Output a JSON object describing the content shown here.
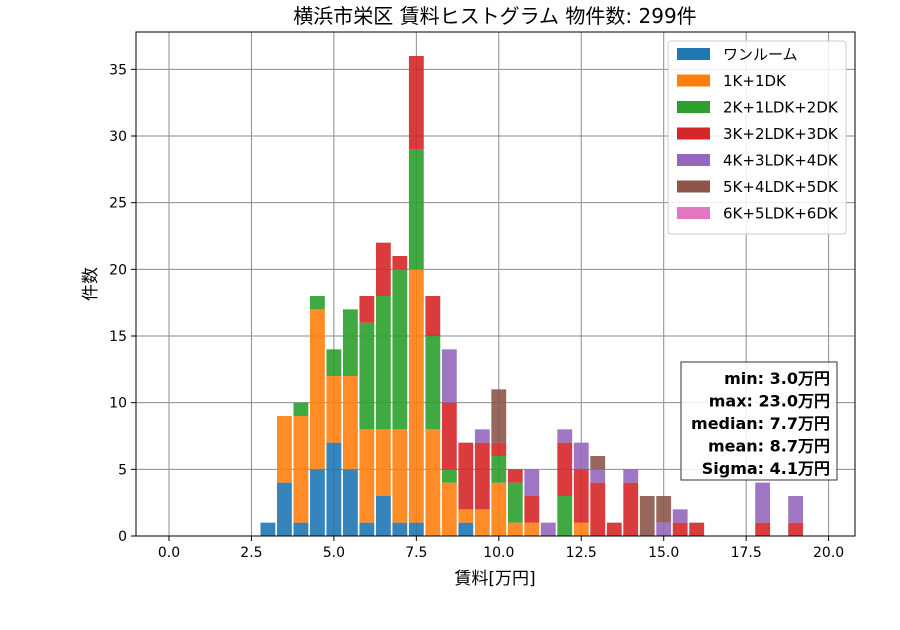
{
  "chart_data": {
    "type": "bar",
    "stacked": true,
    "title": "横浜市栄区 賃料ヒストグラム 物件数: 299件",
    "xlabel": "賃料[万円]",
    "ylabel": "件数",
    "xlim": [
      -1.0,
      20.8
    ],
    "ylim": [
      0,
      37.8
    ],
    "xticks": [
      0.0,
      2.5,
      5.0,
      7.5,
      10.0,
      12.5,
      15.0,
      17.5,
      20.0
    ],
    "xtick_labels": [
      "0.0",
      "2.5",
      "5.0",
      "7.5",
      "10.0",
      "12.5",
      "15.0",
      "17.5",
      "20.0"
    ],
    "yticks": [
      0,
      5,
      10,
      15,
      20,
      25,
      30,
      35
    ],
    "ytick_labels": [
      "0",
      "5",
      "10",
      "15",
      "20",
      "25",
      "30",
      "35"
    ],
    "grid": true,
    "legend_position": "top-right",
    "bin_width": 0.5,
    "x": [
      3.0,
      3.5,
      4.0,
      4.5,
      5.0,
      5.5,
      6.0,
      6.5,
      7.0,
      7.5,
      8.0,
      8.5,
      9.0,
      9.5,
      10.0,
      10.5,
      11.0,
      11.5,
      12.0,
      12.5,
      13.0,
      13.5,
      14.0,
      14.5,
      15.0,
      15.5,
      16.0,
      18.0,
      19.0
    ],
    "series": [
      {
        "name": "ワンルーム",
        "color": "#1f77b4",
        "values": [
          1,
          4,
          1,
          5,
          7,
          5,
          1,
          3,
          1,
          1,
          0,
          0,
          1,
          0,
          0,
          0,
          0,
          0,
          0,
          0,
          0,
          0,
          0,
          0,
          0,
          0,
          0,
          0,
          0
        ]
      },
      {
        "name": "1K+1DK",
        "color": "#ff7f0e",
        "values": [
          0,
          5,
          8,
          12,
          5,
          7,
          7,
          5,
          7,
          19,
          8,
          4,
          1,
          2,
          4,
          1,
          1,
          0,
          0,
          1,
          0,
          0,
          0,
          0,
          0,
          0,
          0,
          0,
          0
        ]
      },
      {
        "name": "2K+1LDK+2DK",
        "color": "#2ca02c",
        "values": [
          0,
          0,
          1,
          1,
          2,
          5,
          8,
          10,
          12,
          9,
          7,
          1,
          0,
          0,
          2,
          3,
          0,
          0,
          3,
          0,
          0,
          0,
          0,
          0,
          0,
          0,
          0,
          0,
          0
        ]
      },
      {
        "name": "3K+2LDK+3DK",
        "color": "#d62728",
        "values": [
          0,
          0,
          0,
          0,
          0,
          0,
          2,
          4,
          1,
          7,
          3,
          5,
          5,
          5,
          1,
          1,
          2,
          0,
          4,
          4,
          4,
          1,
          4,
          0,
          0,
          1,
          1,
          1,
          1
        ]
      },
      {
        "name": "4K+3LDK+4DK",
        "color": "#9467bd",
        "values": [
          0,
          0,
          0,
          0,
          0,
          0,
          0,
          0,
          0,
          0,
          0,
          4,
          0,
          1,
          0,
          0,
          2,
          1,
          1,
          2,
          1,
          0,
          1,
          0,
          1,
          1,
          0,
          3,
          2
        ]
      },
      {
        "name": "5K+4LDK+5DK",
        "color": "#8c564b",
        "values": [
          0,
          0,
          0,
          0,
          0,
          0,
          0,
          0,
          0,
          0,
          0,
          0,
          0,
          0,
          4,
          0,
          0,
          0,
          0,
          0,
          1,
          0,
          0,
          3,
          2,
          0,
          0,
          0,
          0
        ]
      },
      {
        "name": "6K+5LDK+6DK",
        "color": "#e377c2",
        "values": [
          0,
          0,
          0,
          0,
          0,
          0,
          0,
          0,
          0,
          0,
          0,
          0,
          0,
          0,
          0,
          0,
          0,
          0,
          0,
          0,
          0,
          0,
          0,
          0,
          0,
          0,
          0,
          0,
          0
        ]
      }
    ],
    "stats": [
      "min: 3.0万円",
      "max: 23.0万円",
      "median: 7.7万円",
      "mean: 8.7万円",
      "Sigma: 4.1万円"
    ]
  }
}
